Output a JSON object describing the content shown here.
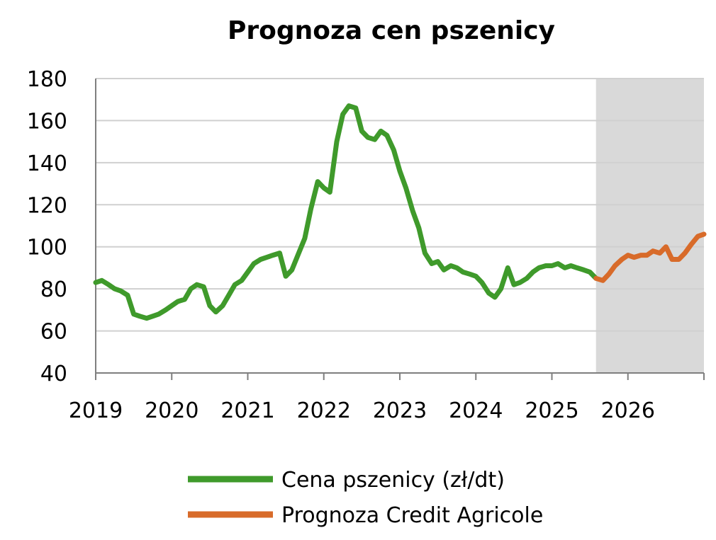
{
  "chart_data": {
    "type": "line",
    "title": "Prognoza cen pszenicy",
    "xlabel": "",
    "ylabel": "",
    "xlim": [
      2019.0,
      2027.0
    ],
    "ylim": [
      40,
      180
    ],
    "y_ticks": [
      40,
      60,
      80,
      100,
      120,
      140,
      160,
      180
    ],
    "x_ticks": [
      "2019",
      "2020",
      "2021",
      "2022",
      "2023",
      "2024",
      "2025",
      "2026"
    ],
    "grid": "horizontal",
    "legend_position": "bottom",
    "forecast_shaded_from": 2025.58,
    "forecast_shaded_to": 2027.0,
    "colors": {
      "historical": "#3f9a2b",
      "forecast": "#d86b2a",
      "shade": "#d9d9d9",
      "grid": "#d0d0d0",
      "axis": "#7f7f7f"
    },
    "series": [
      {
        "name": "Cena pszenicy (zł/dt)",
        "x": [
          2019.0,
          2019.08,
          2019.17,
          2019.25,
          2019.33,
          2019.42,
          2019.5,
          2019.58,
          2019.67,
          2019.75,
          2019.83,
          2019.92,
          2020.0,
          2020.08,
          2020.17,
          2020.25,
          2020.33,
          2020.42,
          2020.5,
          2020.58,
          2020.67,
          2020.75,
          2020.83,
          2020.92,
          2021.0,
          2021.08,
          2021.17,
          2021.25,
          2021.33,
          2021.42,
          2021.5,
          2021.58,
          2021.67,
          2021.75,
          2021.83,
          2021.92,
          2022.0,
          2022.08,
          2022.17,
          2022.25,
          2022.33,
          2022.42,
          2022.5,
          2022.58,
          2022.67,
          2022.75,
          2022.83,
          2022.92,
          2023.0,
          2023.08,
          2023.17,
          2023.25,
          2023.33,
          2023.42,
          2023.5,
          2023.58,
          2023.67,
          2023.75,
          2023.83,
          2023.92,
          2024.0,
          2024.08,
          2024.17,
          2024.25,
          2024.33,
          2024.42,
          2024.5,
          2024.58,
          2024.67,
          2024.75,
          2024.83,
          2024.92,
          2025.0,
          2025.08,
          2025.17,
          2025.25,
          2025.33,
          2025.42,
          2025.5,
          2025.58
        ],
        "values": [
          83,
          84,
          82,
          80,
          79,
          77,
          68,
          67,
          66,
          67,
          68,
          70,
          72,
          74,
          75,
          80,
          82,
          81,
          72,
          69,
          72,
          77,
          82,
          84,
          88,
          92,
          94,
          95,
          96,
          97,
          86,
          89,
          97,
          104,
          118,
          131,
          128,
          126,
          150,
          163,
          167,
          166,
          155,
          152,
          151,
          155,
          153,
          146,
          136,
          128,
          117,
          109,
          97,
          92,
          93,
          89,
          91,
          90,
          88,
          87,
          86,
          83,
          78,
          76,
          80,
          90,
          82,
          83,
          85,
          88,
          90,
          91,
          91,
          92,
          90,
          91,
          90,
          89,
          88,
          85
        ]
      },
      {
        "name": "Prognoza Credit Agricole",
        "x": [
          2025.58,
          2025.67,
          2025.75,
          2025.83,
          2025.92,
          2026.0,
          2026.08,
          2026.17,
          2026.25,
          2026.33,
          2026.42,
          2026.5,
          2026.58,
          2026.67,
          2026.75,
          2026.83,
          2026.92,
          2027.0
        ],
        "values": [
          85,
          84,
          87,
          91,
          94,
          96,
          95,
          96,
          96,
          98,
          97,
          100,
          94,
          94,
          97,
          101,
          105,
          106
        ]
      }
    ]
  }
}
